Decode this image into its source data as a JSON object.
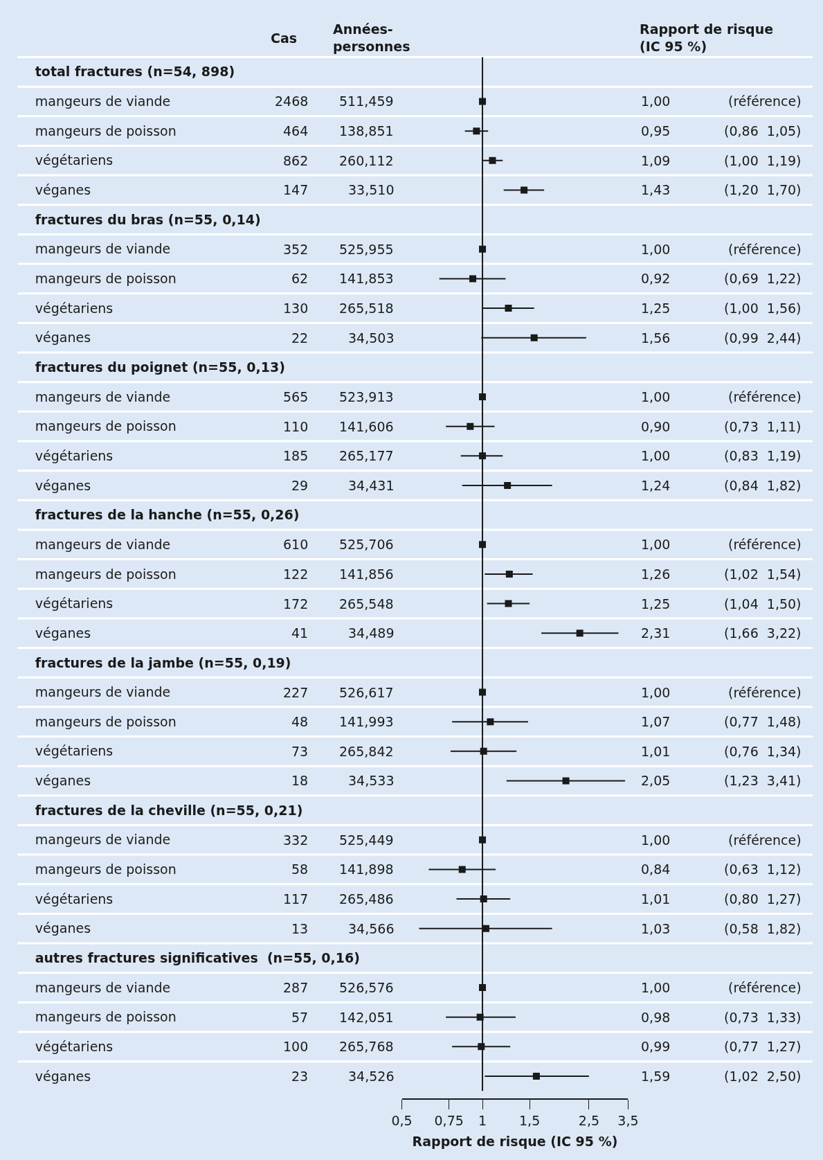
{
  "chart_data": {
    "type": "scatter",
    "orientation": "horizontal",
    "marker": "square",
    "categories": [
      "total fractures (n=54, 898)",
      "mangeurs de viande",
      "mangeurs de poisson",
      "végétariens",
      "véganes",
      "fractures du bras (n=55, 0,14)",
      "mangeurs de viande",
      "mangeurs de poisson",
      "végétariens",
      "véganes",
      "fractures du poignet (n=55, 0,13)",
      "mangeurs de viande",
      "mangeurs de poisson",
      "végétariens",
      "véganes",
      "fractures de la hanche (n=55, 0,26)",
      "mangeurs de viande",
      "mangeurs de poisson",
      "végétariens",
      "véganes",
      "fractures de la jambe (n=55, 0,19)",
      "mangeurs de viande",
      "mangeurs de poisson",
      "végétariens",
      "véganes",
      "fractures de la cheville (n=55, 0,21)",
      "mangeurs de viande",
      "mangeurs de poisson",
      "végétariens",
      "véganes",
      "autres fractures significatives  (n=55, 0,16)",
      "mangeurs de viande",
      "mangeurs de poisson",
      "végétariens",
      "véganes"
    ],
    "series": [
      {
        "color": "#1a1a1a",
        "values": [
          null,
          1.0,
          0.95,
          1.09,
          1.43,
          null,
          1.0,
          0.92,
          1.25,
          1.56,
          null,
          1.0,
          0.9,
          1.0,
          1.24,
          null,
          1.0,
          1.26,
          1.25,
          2.31,
          null,
          1.0,
          1.07,
          1.01,
          2.05,
          null,
          1.0,
          0.84,
          1.01,
          1.03,
          null,
          1.0,
          0.98,
          0.99,
          1.59
        ],
        "errors": [
          null,
          null,
          [
            0.86,
            1.05
          ],
          [
            1.0,
            1.19
          ],
          [
            1.2,
            1.7
          ],
          null,
          null,
          [
            0.69,
            1.22
          ],
          [
            1.0,
            1.56
          ],
          [
            0.99,
            2.44
          ],
          null,
          null,
          [
            0.73,
            1.11
          ],
          [
            0.83,
            1.19
          ],
          [
            0.84,
            1.82
          ],
          null,
          null,
          [
            1.02,
            1.54
          ],
          [
            1.04,
            1.5
          ],
          [
            1.66,
            3.22
          ],
          null,
          null,
          [
            0.77,
            1.48
          ],
          [
            0.76,
            1.34
          ],
          [
            1.23,
            3.41
          ],
          null,
          null,
          [
            0.63,
            1.12
          ],
          [
            0.8,
            1.27
          ],
          [
            0.58,
            1.82
          ],
          null,
          null,
          [
            0.73,
            1.33
          ],
          [
            0.77,
            1.27
          ],
          [
            1.02,
            2.5
          ]
        ],
        "value_labels": [
          null,
          "1,00",
          "0,95",
          "1,09",
          "1,43",
          null,
          "1,00",
          "0,92",
          "1,25",
          "1,56",
          null,
          "1,00",
          "0,90",
          "1,00",
          "1,24",
          null,
          "1,00",
          "1,26",
          "1,25",
          "2,31",
          null,
          "1,00",
          "1,07",
          "1,01",
          "2,05",
          null,
          "1,00",
          "0,84",
          "1,01",
          "1,03",
          null,
          "1,00",
          "0,98",
          "0,99",
          "1,59"
        ]
      }
    ],
    "log": "x",
    "xlim": [
      0.5,
      3.5
    ],
    "xticks": [
      {
        "value": 0.5,
        "label": "0,5"
      },
      {
        "value": 0.75,
        "label": "0,75"
      },
      {
        "value": 1,
        "label": "1"
      },
      {
        "value": 1.5,
        "label": "1,5"
      },
      {
        "value": 2.5,
        "label": "2,5"
      },
      {
        "value": 3.5,
        "label": "3,5"
      }
    ],
    "xlabel": "Rapport de risque (IC 95 %)",
    "ref_lines": [
      {
        "axis": "x",
        "value": 1,
        "color": "#1a1a1a"
      }
    ],
    "annotations": [
      "Cas",
      "Années-\npersonnes",
      "Rapport de risque\n(IC 95 %)",
      "2468",
      "511,459",
      "(référence)",
      "464",
      "138,851",
      "(0,86  1,05)",
      "862",
      "260,112",
      "(1,00  1,19)",
      "147",
      "33,510",
      "(1,20  1,70)",
      "352",
      "525,955",
      "(référence)",
      "62",
      "141,853",
      "(0,69  1,22)",
      "130",
      "265,518",
      "(1,00  1,56)",
      "22",
      "34,503",
      "(0,99  2,44)",
      "565",
      "523,913",
      "(référence)",
      "110",
      "141,606",
      "(0,73  1,11)",
      "185",
      "265,177",
      "(0,83  1,19)",
      "29",
      "34,431",
      "(0,84  1,82)",
      "610",
      "525,706",
      "(référence)",
      "122",
      "141,856",
      "(1,02  1,54)",
      "172",
      "265,548",
      "(1,04  1,50)",
      "41",
      "34,489",
      "(1,66  3,22)",
      "227",
      "526,617",
      "(référence)",
      "48",
      "141,993",
      "(0,77  1,48)",
      "73",
      "265,842",
      "(0,76  1,34)",
      "18",
      "34,533",
      "(1,23  3,41)",
      "332",
      "525,449",
      "(référence)",
      "58",
      "141,898",
      "(0,63  1,12)",
      "117",
      "265,486",
      "(0,80  1,27)",
      "13",
      "34,566",
      "(0,58  1,82)",
      "287",
      "526,576",
      "(référence)",
      "57",
      "142,051",
      "(0,73  1,33)",
      "100",
      "265,768",
      "(0,77  1,27)",
      "23",
      "34,526",
      "(1,02  2,50)"
    ]
  }
}
